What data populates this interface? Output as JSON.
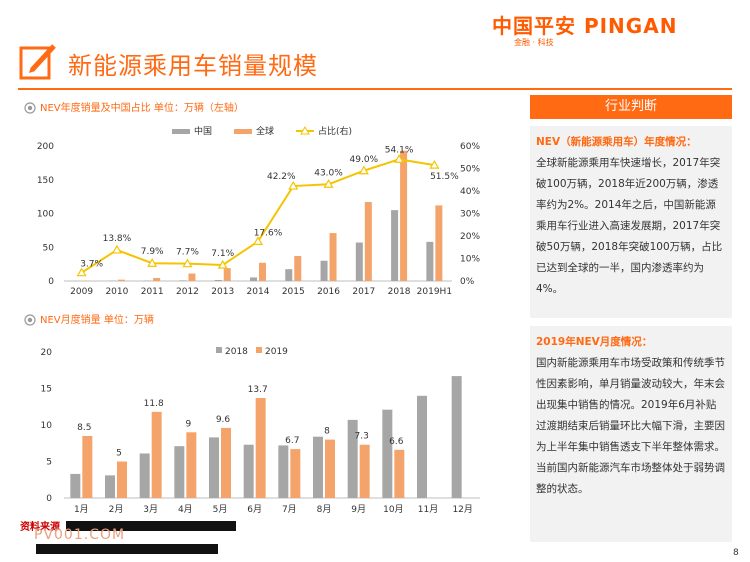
{
  "header": {
    "title": "新能源乘用车销量规模",
    "logo_main": "中国平安 PINGAN",
    "logo_sub": "金融 · 科技"
  },
  "chart1_title": "NEV年度销量及中国占比 单位：万辆（左轴）",
  "chart2_title": "NEV月度销量 单位：万辆",
  "panel": {
    "heading": "行业判断",
    "section1_title": "NEV（新能源乘用车）年度情况：",
    "section1_body": "全球新能源乘用车快速增长，2017年突破100万辆，2018年近200万辆，渗透率约为2%。2014年之后，中国新能源乘用车行业进入高速发展期，2017年突破50万辆，2018年突破100万辆，占比已达到全球的一半，国内渗透率约为4%。",
    "section2_title": "2019年NEV月度情况：",
    "section2_body": "国内新能源乘用车市场受政策和传统季节性因素影响，单月销量波动较大，年末会出现集中销售的情况。2019年6月补贴过渡期结束后销量环比大幅下滑，主要因为上半年集中销售透支下半年整体需求。当前国内新能源汽车市场整体处于弱势调整的状态。"
  },
  "footer": {
    "watermark": "PV001.COM",
    "source_label": "资料来源",
    "page_number": "8"
  },
  "colors": {
    "accent": "#ff6a13",
    "china": "#a6a6a6",
    "global": "#f4a46a",
    "ratio": "#f5c400"
  },
  "chart_data": [
    {
      "type": "bar",
      "categories": [
        "2009",
        "2010",
        "2011",
        "2012",
        "2013",
        "2014",
        "2015",
        "2016",
        "2017",
        "2018",
        "2019H1"
      ],
      "series": [
        {
          "name": "中国",
          "values": [
            0.1,
            0.4,
            0.6,
            0.9,
            1.5,
            5.3,
            17.5,
            30,
            57,
            105,
            58
          ]
        },
        {
          "name": "全球",
          "values": [
            0.5,
            2,
            4.5,
            11,
            19,
            27,
            37,
            71,
            117,
            193,
            112
          ]
        },
        {
          "name": "占比(右)",
          "axis": "right",
          "values": [
            3.7,
            13.8,
            7.9,
            7.7,
            7.1,
            17.6,
            42.2,
            43.0,
            49.0,
            54.1,
            51.5
          ]
        }
      ],
      "ratio_labels": [
        "3.7%",
        "13.8%",
        "7.9%",
        "7.7%",
        "7.1%",
        "17.6%",
        "42.2%",
        "43.0%",
        "49.0%",
        "54.1%",
        "51.5%"
      ],
      "ylim": [
        0,
        200
      ],
      "yticks": [
        "0",
        "50",
        "100",
        "150",
        "200"
      ],
      "y2lim": [
        0,
        60
      ],
      "y2ticks": [
        "0%",
        "10%",
        "20%",
        "30%",
        "40%",
        "50%",
        "60%"
      ],
      "legend": "top-center"
    },
    {
      "type": "bar",
      "categories": [
        "1月",
        "2月",
        "3月",
        "4月",
        "5月",
        "6月",
        "7月",
        "8月",
        "9月",
        "10月",
        "11月",
        "12月"
      ],
      "series": [
        {
          "name": "2018",
          "values": [
            3.3,
            3.1,
            6.1,
            7.1,
            8.3,
            7.3,
            7.2,
            8.4,
            10.7,
            12.1,
            14.0,
            16.7
          ]
        },
        {
          "name": "2019",
          "values": [
            8.5,
            5,
            11.8,
            9,
            9.6,
            13.7,
            6.7,
            8,
            7.3,
            6.6,
            null,
            null
          ]
        }
      ],
      "data_labels_2019": [
        "8.5",
        "5",
        "11.8",
        "9",
        "9.6",
        "13.7",
        "6.7",
        "8",
        "7.3",
        "6.6"
      ],
      "ylim": [
        0,
        20
      ],
      "yticks": [
        "0",
        "5",
        "10",
        "15",
        "20"
      ],
      "legend": "top-center"
    }
  ]
}
